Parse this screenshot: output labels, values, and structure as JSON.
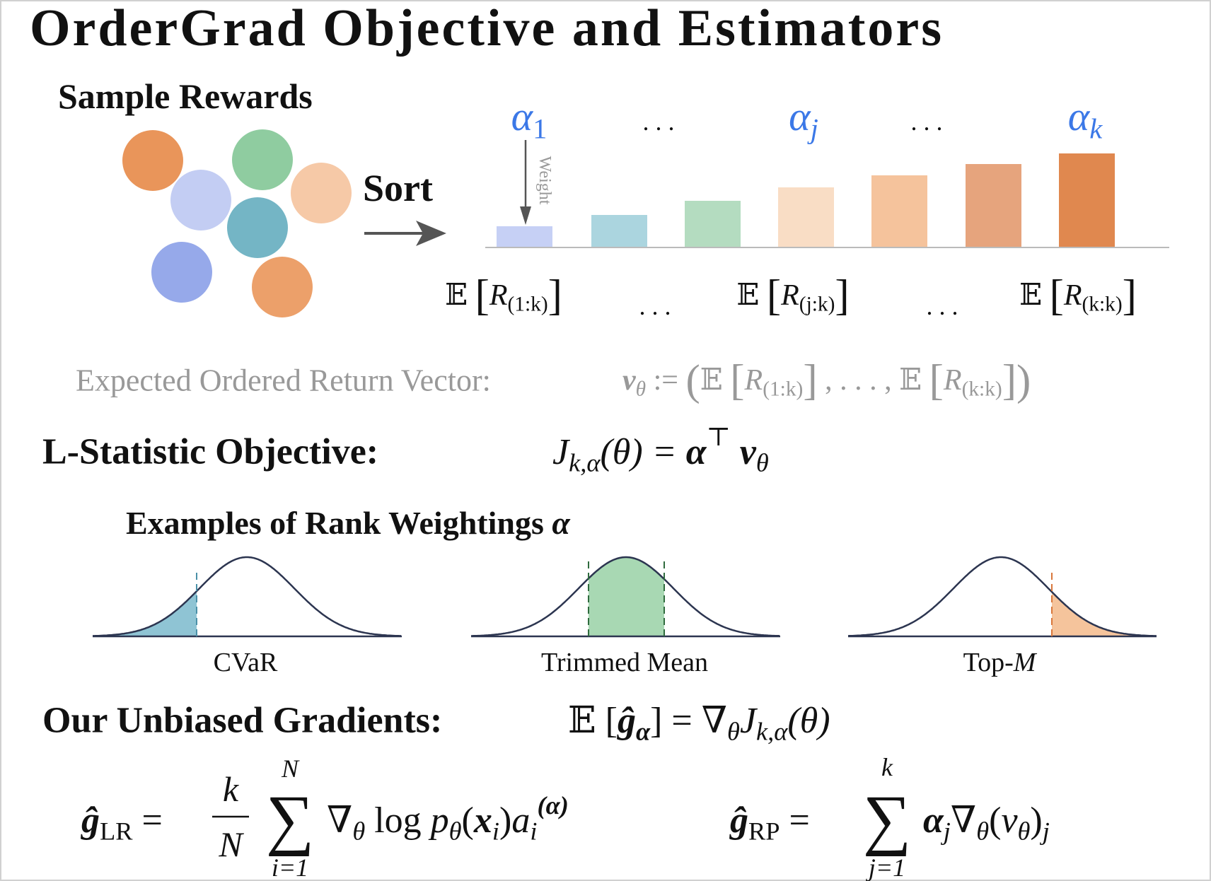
{
  "title": "OrderGrad Objective and Estimators",
  "sample_rewards": "Sample Rewards",
  "sort": "Sort",
  "weight_label": "Weight",
  "ellipsis": ". . .",
  "alpha_labels": [
    [
      {
        "text": "α",
        "style": "italic"
      },
      {
        "text": "1",
        "style": "sub"
      }
    ],
    [
      {
        "text": "α",
        "style": "italic"
      },
      {
        "text": "j",
        "style": "sub italic"
      }
    ],
    [
      {
        "text": "α",
        "style": "italic"
      },
      {
        "text": "k",
        "style": "sub italic"
      }
    ]
  ],
  "expectations": [
    [
      {
        "text": "𝔼 ",
        "style": "normal"
      },
      {
        "text": "[",
        "style": "large"
      },
      {
        "text": "R",
        "style": "italic"
      },
      {
        "text": "(1:k)",
        "style": "sub"
      },
      {
        "text": "]",
        "style": "large"
      }
    ],
    [
      {
        "text": "𝔼 ",
        "style": "normal"
      },
      {
        "text": "[",
        "style": "large"
      },
      {
        "text": "R",
        "style": "italic"
      },
      {
        "text": "(j:k)",
        "style": "sub"
      },
      {
        "text": "]",
        "style": "large"
      }
    ],
    [
      {
        "text": "𝔼 ",
        "style": "normal"
      },
      {
        "text": "[",
        "style": "large"
      },
      {
        "text": "R",
        "style": "italic"
      },
      {
        "text": "(k:k)",
        "style": "sub"
      },
      {
        "text": "]",
        "style": "large"
      }
    ]
  ],
  "expected_vector": {
    "label": "Expected Ordered Return Vector:",
    "formula": [
      {
        "text": "v",
        "style": "bold-italic"
      },
      {
        "text": "θ",
        "style": "sub italic"
      },
      {
        "text": " := ",
        "style": "normal"
      },
      {
        "text": "(",
        "style": "large"
      },
      {
        "text": "𝔼 ",
        "style": "normal"
      },
      {
        "text": "[",
        "style": "large"
      },
      {
        "text": "R",
        "style": "italic"
      },
      {
        "text": "(1:k)",
        "style": "sub"
      },
      {
        "text": "]",
        "style": "large"
      },
      {
        "text": " , . . . , 𝔼 ",
        "style": "normal"
      },
      {
        "text": "[",
        "style": "large"
      },
      {
        "text": "R",
        "style": "italic"
      },
      {
        "text": "(k:k)",
        "style": "sub"
      },
      {
        "text": "]",
        "style": "large"
      },
      {
        "text": ")",
        "style": "large"
      }
    ]
  },
  "objective": {
    "label": "L-Statistic Objective:",
    "formula": [
      {
        "text": "J",
        "style": "italic"
      },
      {
        "text": "k,α",
        "style": "sub italic"
      },
      {
        "text": "(θ) = ",
        "style": "italic"
      },
      {
        "text": "α",
        "style": "bold-italic"
      },
      {
        "text": "⊤",
        "style": "sup"
      },
      {
        "text": " v",
        "style": "bold-italic"
      },
      {
        "text": "θ",
        "style": "sub italic"
      }
    ]
  },
  "examples": {
    "title": [
      {
        "text": "Examples of Rank Weightings ",
        "style": "normal"
      },
      {
        "text": "α",
        "style": "bold-italic"
      }
    ],
    "curves": [
      [
        {
          "text": "CVaR",
          "style": "normal"
        }
      ],
      [
        {
          "text": "Trimmed Mean",
          "style": "normal"
        }
      ],
      [
        {
          "text": "Top-",
          "style": "normal"
        },
        {
          "text": "M",
          "style": "italic"
        }
      ]
    ]
  },
  "gradients": {
    "label": "Our Unbiased Gradients:",
    "formula": [
      {
        "text": "𝔼 [",
        "style": "normal"
      },
      {
        "text": "ĝ",
        "style": "bold-italic"
      },
      {
        "text": "α",
        "style": "sub bold-italic"
      },
      {
        "text": "] = ∇",
        "style": "normal"
      },
      {
        "text": "θ",
        "style": "sub italic"
      },
      {
        "text": "J",
        "style": "italic"
      },
      {
        "text": "k,α",
        "style": "sub italic"
      },
      {
        "text": "(θ)",
        "style": "italic"
      }
    ],
    "lr": {
      "lhs": [
        {
          "text": "ĝ",
          "style": "bold-italic"
        },
        {
          "text": "LR",
          "style": "sub"
        },
        {
          "text": " =",
          "style": "normal"
        }
      ],
      "frac_num": "k",
      "frac_den": "N",
      "sum": "∑",
      "sum_top": "N",
      "sum_bottom": "i=1",
      "rhs": [
        {
          "text": "∇",
          "style": "normal"
        },
        {
          "text": "θ",
          "style": "sub italic"
        },
        {
          "text": " log ",
          "style": "normal"
        },
        {
          "text": "p",
          "style": "italic"
        },
        {
          "text": "θ",
          "style": "sub italic"
        },
        {
          "text": "(",
          "style": "normal"
        },
        {
          "text": "x",
          "style": "bold-italic"
        },
        {
          "text": "i",
          "style": "sub italic"
        },
        {
          "text": ")",
          "style": "normal"
        },
        {
          "text": "a",
          "style": "italic"
        },
        {
          "text": "i",
          "style": "sub italic"
        },
        {
          "text": "(α)",
          "style": "sup bold-italic"
        }
      ]
    },
    "rp": {
      "lhs": [
        {
          "text": "ĝ",
          "style": "bold-italic"
        },
        {
          "text": "RP",
          "style": "sub"
        },
        {
          "text": " =",
          "style": "normal"
        }
      ],
      "sum": "∑",
      "sum_top": "k",
      "sum_bottom": "j=1",
      "rhs": [
        {
          "text": "α",
          "style": "bold-italic"
        },
        {
          "text": "j",
          "style": "sub italic"
        },
        {
          "text": "∇",
          "style": "normal"
        },
        {
          "text": "θ",
          "style": "sub italic"
        },
        {
          "text": "(",
          "style": "normal"
        },
        {
          "text": "v",
          "style": "italic"
        },
        {
          "text": "θ",
          "style": "sub italic"
        },
        {
          "text": ")",
          "style": "normal"
        },
        {
          "text": "j",
          "style": "sub italic"
        }
      ]
    }
  }
}
